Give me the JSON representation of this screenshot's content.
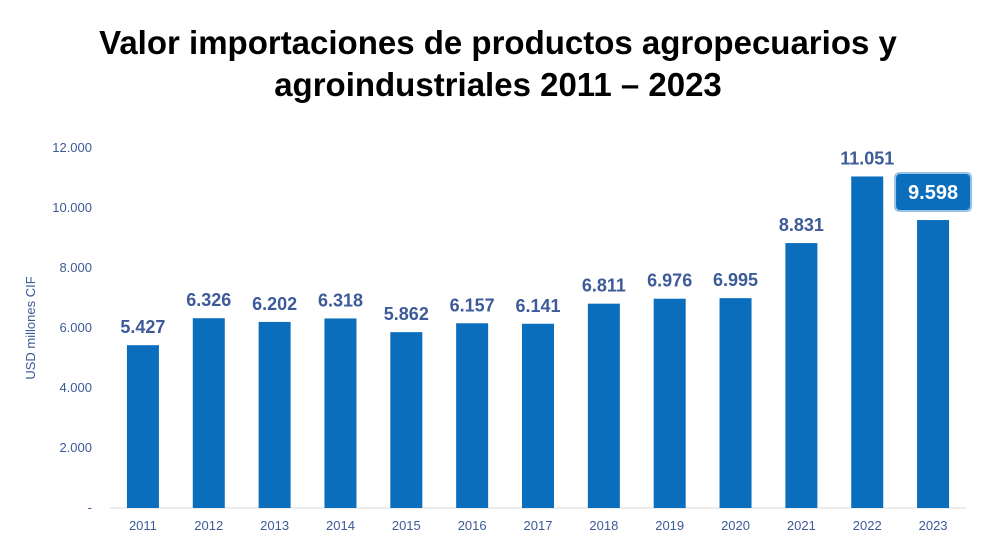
{
  "title": {
    "line1": "Valor importaciones de productos agropecuarios y",
    "line2": "agroindustriales 2011 – 2023"
  },
  "colors": {
    "bar": "#0a6ebd",
    "label": "#3d5a99",
    "highlight_border": "#9cc3e6"
  },
  "chart_data": {
    "type": "bar",
    "title": "Valor importaciones de productos agropecuarios y agroindustriales 2011 – 2023",
    "xlabel": "",
    "ylabel": "USD millones CIF",
    "ylim": [
      0,
      12000
    ],
    "yticks": [
      0,
      2000,
      4000,
      6000,
      8000,
      10000,
      12000
    ],
    "ytick_labels": [
      "-",
      "2.000",
      "4.000",
      "6.000",
      "8.000",
      "10.000",
      "12.000"
    ],
    "categories": [
      "2011",
      "2012",
      "2013",
      "2014",
      "2015",
      "2016",
      "2017",
      "2018",
      "2019",
      "2020",
      "2021",
      "2022",
      "2023"
    ],
    "values": [
      5427,
      6326,
      6202,
      6318,
      5862,
      6157,
      6141,
      6811,
      6976,
      6995,
      8831,
      11051,
      9598
    ],
    "value_labels": [
      "5.427",
      "6.326",
      "6.202",
      "6.318",
      "5.862",
      "6.157",
      "6.141",
      "6.811",
      "6.976",
      "6.995",
      "8.831",
      "11.051",
      "9.598"
    ],
    "highlighted_category": "2023",
    "grid": false
  }
}
